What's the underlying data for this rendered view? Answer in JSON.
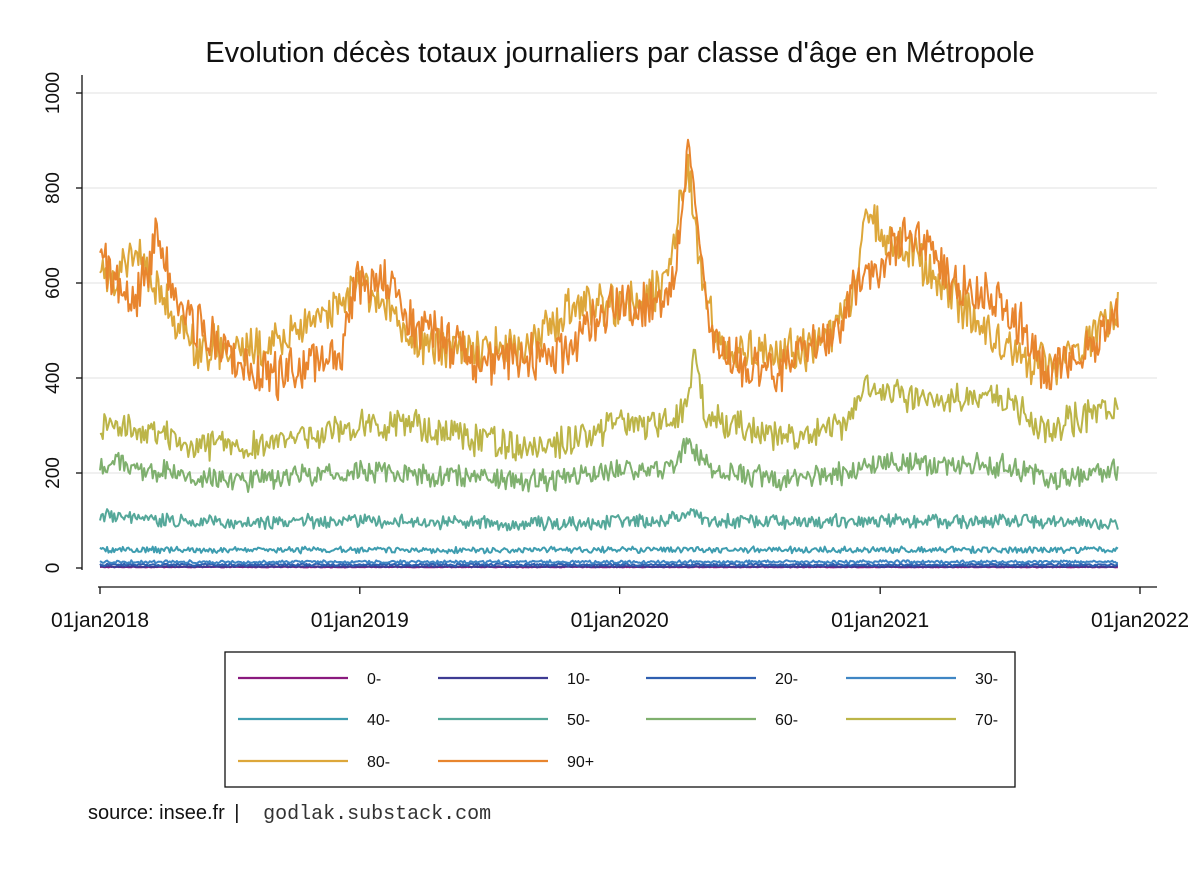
{
  "footer": {
    "source": "source: insee.fr",
    "separator": "|",
    "site": "godlak.substack.com"
  },
  "chart_data": {
    "type": "line",
    "title": "Evolution décès totaux journaliers par classe d'âge en Métropole",
    "xlabel": "",
    "ylabel": "",
    "x_start": "2018-01-01",
    "x_end": "2021-11-30",
    "xlim_days": [
      0,
      1461
    ],
    "ylim": [
      0,
      1000
    ],
    "y_ticks": [
      0,
      200,
      400,
      600,
      800,
      1000
    ],
    "x_ticks": [
      {
        "day": 0,
        "label": "01jan2018"
      },
      {
        "day": 365,
        "label": "01jan2019"
      },
      {
        "day": 730,
        "label": "01jan2020"
      },
      {
        "day": 1096,
        "label": "01jan2021"
      },
      {
        "day": 1461,
        "label": "01jan2022"
      }
    ],
    "grid": true,
    "legend_position": "bottom",
    "legend_columns": 4,
    "series": [
      {
        "name": "0-",
        "color": "#8a1a7e",
        "keyframes": [
          [
            0,
            2
          ],
          [
            1430,
            2
          ]
        ],
        "noise": 1
      },
      {
        "name": "10-",
        "color": "#3e3b93",
        "keyframes": [
          [
            0,
            3
          ],
          [
            1430,
            3
          ]
        ],
        "noise": 1.5
      },
      {
        "name": "20-",
        "color": "#2f5fb0",
        "keyframes": [
          [
            0,
            7
          ],
          [
            1430,
            7
          ]
        ],
        "noise": 3
      },
      {
        "name": "30-",
        "color": "#3f86c4",
        "keyframes": [
          [
            0,
            13
          ],
          [
            1430,
            13
          ]
        ],
        "noise": 4
      },
      {
        "name": "40-",
        "color": "#3e9db0",
        "keyframes": [
          [
            0,
            38
          ],
          [
            1430,
            38
          ]
        ],
        "noise": 8
      },
      {
        "name": "50-",
        "color": "#55a89a",
        "keyframes": [
          [
            0,
            110
          ],
          [
            30,
            105
          ],
          [
            200,
            95
          ],
          [
            365,
            100
          ],
          [
            600,
            92
          ],
          [
            730,
            98
          ],
          [
            800,
            102
          ],
          [
            830,
            120
          ],
          [
            850,
            100
          ],
          [
            1000,
            96
          ],
          [
            1096,
            100
          ],
          [
            1300,
            98
          ],
          [
            1430,
            92
          ]
        ],
        "noise": 18
      },
      {
        "name": "60-",
        "color": "#7fb06e",
        "keyframes": [
          [
            0,
            215
          ],
          [
            30,
            215
          ],
          [
            60,
            205
          ],
          [
            200,
            185
          ],
          [
            365,
            205
          ],
          [
            450,
            195
          ],
          [
            600,
            180
          ],
          [
            730,
            205
          ],
          [
            800,
            210
          ],
          [
            830,
            265
          ],
          [
            860,
            205
          ],
          [
            950,
            185
          ],
          [
            1050,
            200
          ],
          [
            1096,
            225
          ],
          [
            1200,
            210
          ],
          [
            1270,
            220
          ],
          [
            1330,
            185
          ],
          [
            1430,
            205
          ]
        ],
        "noise": 30
      },
      {
        "name": "70-",
        "color": "#bcb548",
        "keyframes": [
          [
            0,
            305
          ],
          [
            30,
            305
          ],
          [
            60,
            285
          ],
          [
            200,
            250
          ],
          [
            365,
            300
          ],
          [
            420,
            305
          ],
          [
            600,
            250
          ],
          [
            730,
            300
          ],
          [
            800,
            310
          ],
          [
            825,
            340
          ],
          [
            835,
            450
          ],
          [
            850,
            320
          ],
          [
            950,
            275
          ],
          [
            1050,
            300
          ],
          [
            1070,
            385
          ],
          [
            1096,
            365
          ],
          [
            1200,
            355
          ],
          [
            1260,
            375
          ],
          [
            1320,
            290
          ],
          [
            1430,
            340
          ]
        ],
        "noise": 40
      },
      {
        "name": "80-",
        "color": "#dda73a",
        "keyframes": [
          [
            0,
            640
          ],
          [
            20,
            610
          ],
          [
            50,
            670
          ],
          [
            90,
            560
          ],
          [
            130,
            470
          ],
          [
            200,
            460
          ],
          [
            280,
            505
          ],
          [
            330,
            545
          ],
          [
            365,
            600
          ],
          [
            395,
            570
          ],
          [
            440,
            480
          ],
          [
            520,
            460
          ],
          [
            600,
            460
          ],
          [
            640,
            520
          ],
          [
            680,
            560
          ],
          [
            710,
            550
          ],
          [
            760,
            560
          ],
          [
            800,
            610
          ],
          [
            825,
            860
          ],
          [
            845,
            600
          ],
          [
            870,
            470
          ],
          [
            950,
            455
          ],
          [
            1020,
            470
          ],
          [
            1060,
            590
          ],
          [
            1080,
            760
          ],
          [
            1096,
            700
          ],
          [
            1140,
            670
          ],
          [
            1180,
            600
          ],
          [
            1230,
            520
          ],
          [
            1280,
            450
          ],
          [
            1330,
            420
          ],
          [
            1380,
            470
          ],
          [
            1430,
            540
          ]
        ],
        "noise": 55
      },
      {
        "name": "90+",
        "color": "#e8852e",
        "keyframes": [
          [
            0,
            670
          ],
          [
            15,
            610
          ],
          [
            40,
            560
          ],
          [
            70,
            620
          ],
          [
            80,
            700
          ],
          [
            100,
            590
          ],
          [
            130,
            520
          ],
          [
            200,
            420
          ],
          [
            250,
            400
          ],
          [
            300,
            440
          ],
          [
            340,
            450
          ],
          [
            360,
            600
          ],
          [
            400,
            625
          ],
          [
            430,
            520
          ],
          [
            470,
            490
          ],
          [
            530,
            430
          ],
          [
            600,
            440
          ],
          [
            650,
            460
          ],
          [
            700,
            530
          ],
          [
            730,
            545
          ],
          [
            760,
            560
          ],
          [
            800,
            580
          ],
          [
            815,
            700
          ],
          [
            825,
            880
          ],
          [
            840,
            700
          ],
          [
            860,
            480
          ],
          [
            900,
            430
          ],
          [
            950,
            420
          ],
          [
            1000,
            460
          ],
          [
            1040,
            510
          ],
          [
            1060,
            590
          ],
          [
            1096,
            630
          ],
          [
            1130,
            700
          ],
          [
            1160,
            680
          ],
          [
            1200,
            600
          ],
          [
            1260,
            560
          ],
          [
            1300,
            500
          ],
          [
            1330,
            400
          ],
          [
            1380,
            460
          ],
          [
            1430,
            520
          ]
        ],
        "noise": 60
      }
    ]
  }
}
